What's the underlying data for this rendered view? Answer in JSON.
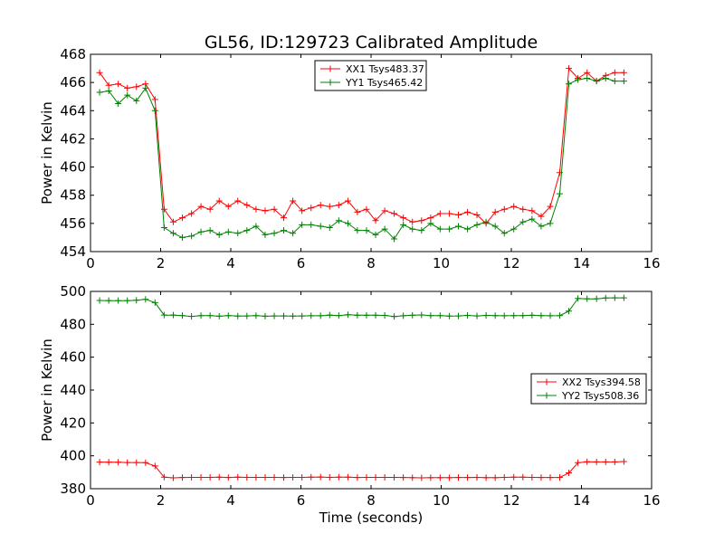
{
  "chart_data": [
    {
      "type": "line",
      "title": "GL56, ID:129723 Calibrated Amplitude",
      "xlabel": "",
      "ylabel": "Power in Kelvin",
      "xlim": [
        0,
        16
      ],
      "ylim": [
        454,
        468
      ],
      "xticks": [
        "0",
        "2",
        "4",
        "6",
        "8",
        "10",
        "12",
        "14",
        "16"
      ],
      "yticks": [
        "454",
        "456",
        "458",
        "460",
        "462",
        "464",
        "466",
        "468"
      ],
      "legend_position": "top-center",
      "grid": false,
      "x": [
        0.26,
        0.52,
        0.79,
        1.05,
        1.31,
        1.57,
        1.84,
        2.1,
        2.36,
        2.62,
        2.88,
        3.15,
        3.41,
        3.67,
        3.93,
        4.2,
        4.46,
        4.72,
        4.98,
        5.24,
        5.51,
        5.77,
        6.03,
        6.29,
        6.56,
        6.82,
        7.08,
        7.34,
        7.61,
        7.87,
        8.13,
        8.39,
        8.66,
        8.92,
        9.18,
        9.44,
        9.7,
        9.97,
        10.23,
        10.49,
        10.75,
        11.02,
        11.28,
        11.54,
        11.8,
        12.07,
        12.33,
        12.59,
        12.85,
        13.11,
        13.38,
        13.64,
        13.9,
        14.16,
        14.43,
        14.69,
        14.95,
        15.21
      ],
      "series": [
        {
          "name": "XX1 Tsys483.37",
          "color": "#ff0000",
          "values": [
            466.7,
            465.8,
            465.9,
            465.6,
            465.7,
            465.9,
            464.8,
            457.0,
            456.1,
            456.4,
            456.7,
            457.2,
            457.0,
            457.6,
            457.2,
            457.6,
            457.3,
            457.0,
            456.9,
            457.0,
            456.4,
            457.6,
            456.9,
            457.1,
            457.3,
            457.2,
            457.3,
            457.6,
            456.8,
            457.0,
            456.2,
            456.9,
            456.7,
            456.4,
            456.1,
            456.2,
            456.4,
            456.7,
            456.7,
            456.6,
            456.8,
            456.6,
            456.0,
            456.8,
            457.0,
            457.2,
            457.0,
            456.9,
            456.5,
            457.2,
            459.6,
            467.0,
            466.3,
            466.7,
            466.1,
            466.5,
            466.7,
            466.7
          ]
        },
        {
          "name": "YY1 Tsys465.42",
          "color": "#008000",
          "values": [
            465.3,
            465.4,
            464.5,
            465.1,
            464.7,
            465.6,
            464.0,
            455.7,
            455.3,
            455.0,
            455.1,
            455.4,
            455.5,
            455.2,
            455.4,
            455.3,
            455.5,
            455.8,
            455.2,
            455.3,
            455.5,
            455.3,
            455.9,
            455.9,
            455.8,
            455.7,
            456.2,
            456.0,
            455.5,
            455.5,
            455.2,
            455.6,
            454.9,
            455.9,
            455.6,
            455.5,
            456.0,
            455.6,
            455.6,
            455.8,
            455.6,
            455.9,
            456.1,
            455.8,
            455.3,
            455.6,
            456.1,
            456.3,
            455.8,
            456.0,
            458.1,
            465.9,
            466.2,
            466.3,
            466.1,
            466.3,
            466.1,
            466.1
          ]
        }
      ]
    },
    {
      "type": "line",
      "title": "",
      "xlabel": "Time (seconds)",
      "ylabel": "Power in Kelvin",
      "xlim": [
        0,
        16
      ],
      "ylim": [
        380,
        500
      ],
      "xticks": [
        "0",
        "2",
        "4",
        "6",
        "8",
        "10",
        "12",
        "14",
        "16"
      ],
      "yticks": [
        "380",
        "400",
        "420",
        "440",
        "460",
        "480",
        "500"
      ],
      "legend_position": "center-right",
      "grid": false,
      "x": [
        0.26,
        0.52,
        0.79,
        1.05,
        1.31,
        1.57,
        1.84,
        2.1,
        2.36,
        2.62,
        2.88,
        3.15,
        3.41,
        3.67,
        3.93,
        4.2,
        4.46,
        4.72,
        4.98,
        5.24,
        5.51,
        5.77,
        6.03,
        6.29,
        6.56,
        6.82,
        7.08,
        7.34,
        7.61,
        7.87,
        8.13,
        8.39,
        8.66,
        8.92,
        9.18,
        9.44,
        9.7,
        9.97,
        10.23,
        10.49,
        10.75,
        11.02,
        11.28,
        11.54,
        11.8,
        12.07,
        12.33,
        12.59,
        12.85,
        13.11,
        13.38,
        13.64,
        13.9,
        14.16,
        14.43,
        14.69,
        14.95,
        15.21
      ],
      "series": [
        {
          "name": "XX2 Tsys394.58",
          "color": "#ff0000",
          "values": [
            396.2,
            396.2,
            396.1,
            395.9,
            395.9,
            395.8,
            393.8,
            387.0,
            386.6,
            386.8,
            386.9,
            386.9,
            386.9,
            387.0,
            386.8,
            387.0,
            386.9,
            386.9,
            386.9,
            386.9,
            386.8,
            386.9,
            386.9,
            387.0,
            387.1,
            386.9,
            387.0,
            387.0,
            386.8,
            386.9,
            386.9,
            386.9,
            386.9,
            386.8,
            386.7,
            386.6,
            386.7,
            386.7,
            386.7,
            386.8,
            386.8,
            386.9,
            386.7,
            386.7,
            386.9,
            387.0,
            387.0,
            386.9,
            386.8,
            386.8,
            386.8,
            389.6,
            395.8,
            396.4,
            396.3,
            396.3,
            396.3,
            396.5
          ]
        },
        {
          "name": "YY2 Tsys508.36",
          "color": "#008000",
          "values": [
            494.5,
            494.4,
            494.4,
            494.4,
            494.6,
            495.2,
            493.2,
            485.6,
            485.6,
            485.3,
            484.8,
            485.3,
            485.3,
            484.9,
            485.3,
            485.0,
            485.1,
            485.3,
            484.9,
            485.1,
            485.1,
            485.0,
            485.1,
            485.2,
            485.2,
            485.6,
            485.3,
            485.8,
            485.5,
            485.5,
            485.5,
            485.4,
            484.7,
            485.2,
            485.5,
            485.7,
            485.3,
            485.3,
            485.0,
            485.1,
            485.4,
            485.1,
            485.4,
            485.3,
            485.2,
            485.3,
            485.3,
            485.5,
            485.3,
            485.2,
            485.3,
            488.0,
            495.7,
            495.5,
            495.5,
            496.0,
            496.1,
            496.1
          ]
        }
      ]
    }
  ]
}
